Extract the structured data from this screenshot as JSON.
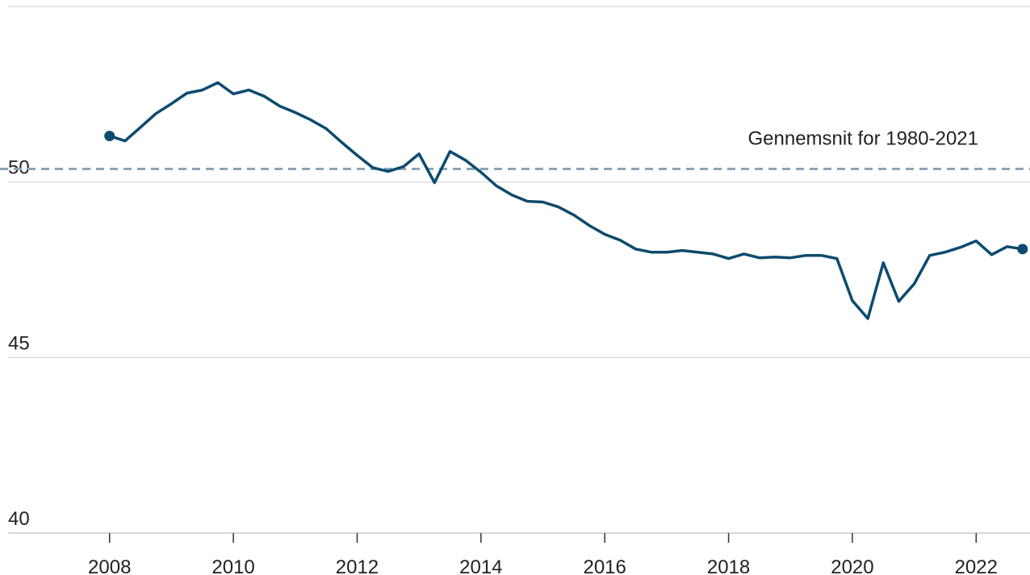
{
  "chart_data": {
    "type": "line",
    "annotation": "Gennemsnit for 1980-2021",
    "average": 50.37,
    "average_color": "#8aa5b8",
    "x": [
      2008,
      2008.25,
      2008.5,
      2008.75,
      2009,
      2009.25,
      2009.5,
      2009.75,
      2010,
      2010.25,
      2010.5,
      2010.75,
      2011,
      2011.25,
      2011.5,
      2011.75,
      2012,
      2012.25,
      2012.5,
      2012.75,
      2013,
      2013.25,
      2013.5,
      2013.75,
      2014,
      2014.25,
      2014.5,
      2014.75,
      2015,
      2015.25,
      2015.5,
      2015.75,
      2016,
      2016.25,
      2016.5,
      2016.75,
      2017,
      2017.25,
      2017.5,
      2017.75,
      2018,
      2018.25,
      2018.5,
      2018.75,
      2019,
      2019.25,
      2019.5,
      2019.75,
      2020,
      2020.25,
      2020.5,
      2020.75,
      2021,
      2021.25,
      2021.5,
      2021.75,
      2022,
      2022.25,
      2022.5,
      2022.75
    ],
    "series": [
      {
        "color": "#0d4a6e",
        "values": [
          51.31,
          51.17,
          51.56,
          51.95,
          52.23,
          52.53,
          52.62,
          52.83,
          52.51,
          52.62,
          52.44,
          52.16,
          51.98,
          51.77,
          51.52,
          51.13,
          50.76,
          50.41,
          50.3,
          50.44,
          50.8,
          49.98,
          50.87,
          50.62,
          50.28,
          49.89,
          49.63,
          49.45,
          49.43,
          49.29,
          49.06,
          48.76,
          48.51,
          48.34,
          48.09,
          48.0,
          48.0,
          48.05,
          48.0,
          47.95,
          47.82,
          47.95,
          47.84,
          47.86,
          47.84,
          47.91,
          47.91,
          47.82,
          46.62,
          46.11,
          47.7,
          46.6,
          47.1,
          47.91,
          48.0,
          48.14,
          48.32,
          47.93,
          48.16,
          48.09
        ]
      }
    ],
    "xlim": [
      2006.23,
      2022.87
    ],
    "xticks": [
      2008,
      2010,
      2012,
      2014,
      2016,
      2018,
      2020,
      2022
    ],
    "ylim": [
      40,
      55
    ],
    "yticks": [
      40,
      45,
      50
    ],
    "grid": true
  }
}
